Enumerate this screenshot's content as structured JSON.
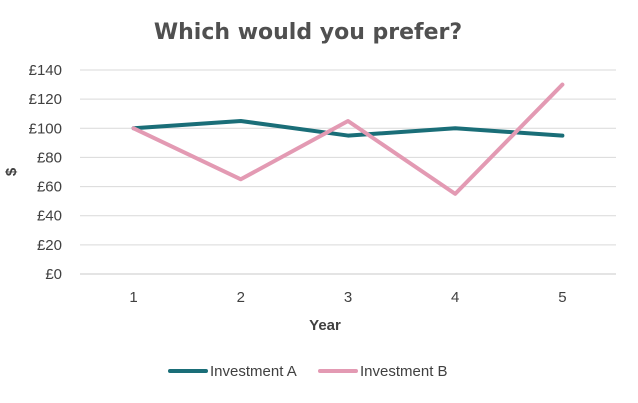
{
  "chart_data": {
    "type": "line",
    "title": "Which would you prefer?",
    "xlabel": "Year",
    "ylabel": "$",
    "categories": [
      "1",
      "2",
      "3",
      "4",
      "5"
    ],
    "ylim": [
      0,
      140
    ],
    "y_ticks": [
      "£0",
      "£20",
      "£40",
      "£60",
      "£80",
      "£100",
      "£120",
      "£140"
    ],
    "y_tick_values": [
      0,
      20,
      40,
      60,
      80,
      100,
      120,
      140
    ],
    "grid": true,
    "legend": "bottom",
    "series": [
      {
        "name": "Investment A",
        "color": "#1a6e78",
        "values": [
          100,
          105,
          95,
          100,
          95
        ]
      },
      {
        "name": "Investment B",
        "color": "#e39ab3",
        "values": [
          100,
          65,
          105,
          55,
          130
        ]
      }
    ]
  }
}
